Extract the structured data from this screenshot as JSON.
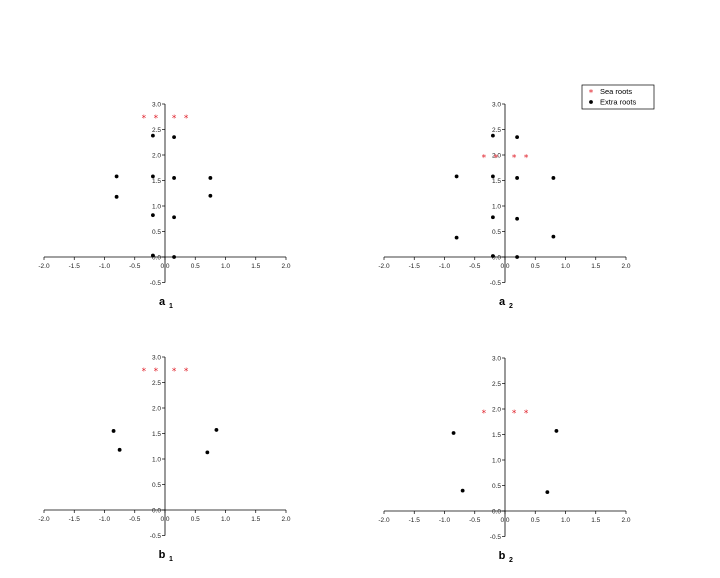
{
  "colors": {
    "sea": "#e0202a",
    "extra": "#000000"
  },
  "legend": {
    "placement": "top-right of panel a2",
    "entries": [
      "Sea roots",
      "Extra roots"
    ]
  },
  "chart_data": [
    {
      "type": "scatter",
      "panel_label": "a",
      "panel_sub": "1",
      "xlim": [
        -2.0,
        2.0
      ],
      "ylim": [
        -0.5,
        3.0
      ],
      "xticks": [
        "-2.0",
        "-1.5",
        "-1.0",
        "-0.5",
        "0.0",
        "0.5",
        "1.0",
        "1.5",
        "2.0"
      ],
      "yticks": [
        "-0.5",
        "0.0",
        "0.5",
        "1.0",
        "1.5",
        "2.0",
        "2.5",
        "3.0"
      ],
      "grid": false,
      "series": [
        {
          "name": "Sea roots",
          "marker": "star",
          "x": [
            -0.35,
            -0.15,
            0.15,
            0.35
          ],
          "y": [
            2.75,
            2.75,
            2.75,
            2.75
          ]
        },
        {
          "name": "Extra roots",
          "marker": "dot",
          "x": [
            -0.8,
            -0.8,
            -0.2,
            -0.2,
            -0.2,
            -0.2,
            0.15,
            0.15,
            0.15,
            0.15,
            0.75,
            0.75
          ],
          "y": [
            1.58,
            1.18,
            2.38,
            1.58,
            0.82,
            0.03,
            2.35,
            1.55,
            0.78,
            0.0,
            1.55,
            1.2
          ]
        }
      ]
    },
    {
      "type": "scatter",
      "panel_label": "a",
      "panel_sub": "2",
      "xlim": [
        -2.0,
        2.0
      ],
      "ylim": [
        -0.5,
        3.0
      ],
      "xticks": [
        "-2.0",
        "-1.5",
        "-1.0",
        "-0.5",
        "0.0",
        "0.5",
        "1.0",
        "1.5",
        "2.0"
      ],
      "yticks": [
        "-0.5",
        "0.0",
        "0.5",
        "1.0",
        "1.5",
        "2.0",
        "2.5",
        "3.0"
      ],
      "grid": false,
      "series": [
        {
          "name": "Sea roots",
          "marker": "star",
          "x": [
            -0.35,
            -0.15,
            0.15,
            0.35
          ],
          "y": [
            1.97,
            1.97,
            1.97,
            1.97
          ]
        },
        {
          "name": "Extra roots",
          "marker": "dot",
          "x": [
            -0.8,
            -0.8,
            -0.2,
            -0.2,
            -0.2,
            -0.2,
            0.2,
            0.2,
            0.2,
            0.2,
            0.8,
            0.8
          ],
          "y": [
            1.58,
            0.38,
            2.38,
            1.58,
            0.78,
            0.02,
            2.35,
            1.55,
            0.75,
            0.0,
            1.55,
            0.4
          ]
        }
      ]
    },
    {
      "type": "scatter",
      "panel_label": "b",
      "panel_sub": "1",
      "xlim": [
        -2.0,
        2.0
      ],
      "ylim": [
        -0.5,
        3.0
      ],
      "xticks": [
        "-2.0",
        "-1.5",
        "-1.0",
        "-0.5",
        "0.0",
        "0.5",
        "1.0",
        "1.5",
        "2.0"
      ],
      "yticks": [
        "-0.5",
        "0.0",
        "0.5",
        "1.0",
        "1.5",
        "2.0",
        "2.5",
        "3.0"
      ],
      "grid": false,
      "series": [
        {
          "name": "Sea roots",
          "marker": "star",
          "x": [
            -0.35,
            -0.15,
            0.15,
            0.35
          ],
          "y": [
            2.75,
            2.75,
            2.75,
            2.75
          ]
        },
        {
          "name": "Extra roots",
          "marker": "dot",
          "x": [
            -0.85,
            -0.75,
            0.7,
            0.85
          ],
          "y": [
            1.55,
            1.18,
            1.13,
            1.57
          ]
        }
      ]
    },
    {
      "type": "scatter",
      "panel_label": "b",
      "panel_sub": "2",
      "xlim": [
        -2.0,
        2.0
      ],
      "ylim": [
        -0.5,
        3.0
      ],
      "xticks": [
        "-2.0",
        "-1.5",
        "-1.0",
        "-0.5",
        "0.0",
        "0.5",
        "1.0",
        "1.5",
        "2.0"
      ],
      "yticks": [
        "-0.5",
        "0.0",
        "0.5",
        "1.0",
        "1.5",
        "2.0",
        "2.5",
        "3.0"
      ],
      "grid": false,
      "series": [
        {
          "name": "Sea roots",
          "marker": "star",
          "x": [
            -0.35,
            0.15,
            0.35
          ],
          "y": [
            1.95,
            1.95,
            1.95
          ]
        },
        {
          "name": "Extra roots",
          "marker": "dot",
          "x": [
            -0.85,
            -0.7,
            0.7,
            0.85
          ],
          "y": [
            1.53,
            0.4,
            0.37,
            1.57
          ]
        }
      ]
    }
  ]
}
